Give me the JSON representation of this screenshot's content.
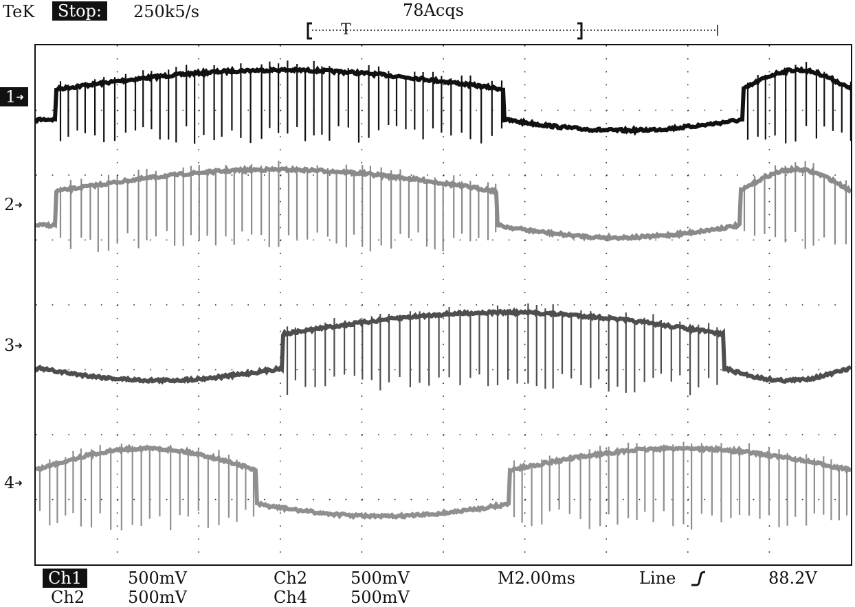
{
  "header": {
    "brand": "TeK",
    "run_state": "Stop:",
    "sample_rate": "250k5/s",
    "acquisitions": "78Acqs",
    "trigger_marker": "T"
  },
  "channels": [
    {
      "id": "ch1",
      "marker": "1",
      "color": "#111111"
    },
    {
      "id": "ch2",
      "marker": "2",
      "color": "#8a8a8a"
    },
    {
      "id": "ch3",
      "marker": "3",
      "color": "#4e4e4e"
    },
    {
      "id": "ch4",
      "marker": "4",
      "color": "#8f8f8f"
    }
  ],
  "footer": {
    "row1": {
      "ch_a": "Ch1",
      "ch_a_scale": "500mV",
      "ch_b": "Ch2",
      "ch_b_scale": "500mV",
      "timebase": "M2.00ms",
      "trigger_source": "Line",
      "trigger_level": "88.2V"
    },
    "row2": {
      "ch_a": "Ch2",
      "ch_a_scale": "500mV",
      "ch_b": "Ch4",
      "ch_b_scale": "500mV"
    }
  },
  "icons": {
    "marker_arrow": "arrow-right-icon",
    "trigger_slope": "rising-edge-icon"
  }
}
